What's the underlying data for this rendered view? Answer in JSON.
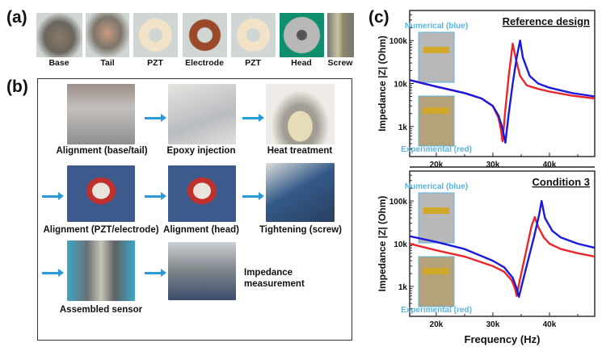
{
  "panel_a": {
    "label": "(a)",
    "parts": [
      "Base",
      "Tail",
      "PZT",
      "Electrode",
      "PZT",
      "Head",
      "Screw"
    ]
  },
  "panel_b": {
    "label": "(b)",
    "steps": [
      "Alignment (base/tail)",
      "Epoxy injection",
      "Heat treatment",
      "Alignment (PZT/electrode)",
      "Alignment (head)",
      "Tightening (screw)",
      "Assembled sensor",
      "Impedance measurement"
    ]
  },
  "panel_c": {
    "label": "(c)"
  },
  "colors": {
    "numerical": "#1a1adc",
    "experimental": "#e8262b",
    "inset_label": "#5ab4e0",
    "arrow": "#2b9ad8"
  },
  "chart_data": [
    {
      "type": "line",
      "title": "Reference design",
      "xlabel": "",
      "ylabel": "Impedance |Z| (Ohm)",
      "xlim": [
        15300,
        48000
      ],
      "ylim": [
        200,
        500000
      ],
      "yscale": "log",
      "xticks": [
        "20k",
        "30k",
        "40k"
      ],
      "yticks": [
        "1k",
        "10k",
        "100k"
      ],
      "inset_labels": [
        "Numerical (blue)",
        "Experimental (red)"
      ],
      "series": [
        {
          "name": "Numerical (blue)",
          "color": "#1a1adc",
          "x": [
            15300,
            20000,
            25000,
            28000,
            30000,
            31000,
            31700,
            32200,
            32800,
            33500,
            34200,
            34800,
            35300,
            36500,
            38000,
            40000,
            44000,
            48000
          ],
          "y": [
            12000,
            8500,
            6000,
            4500,
            3000,
            1800,
            900,
            420,
            2000,
            10000,
            40000,
            100000,
            40000,
            15000,
            10000,
            8000,
            6000,
            5000
          ]
        },
        {
          "name": "Experimental (red)",
          "color": "#e8262b",
          "x": [
            15300,
            20000,
            25000,
            28000,
            30000,
            31000,
            31400,
            31700,
            32200,
            32800,
            33500,
            34000,
            34800,
            36000,
            38000,
            40000,
            44000,
            48000
          ],
          "y": [
            12000,
            8500,
            6000,
            4500,
            3000,
            1600,
            900,
            450,
            2500,
            15000,
            85000,
            40000,
            15000,
            9000,
            7500,
            6500,
            5200,
            4500
          ]
        }
      ]
    },
    {
      "type": "line",
      "title": "Condition 3",
      "xlabel": "Frequency (Hz)",
      "ylabel": "Impedance |Z| (Ohm)",
      "xlim": [
        15300,
        48000
      ],
      "ylim": [
        200,
        500000
      ],
      "yscale": "log",
      "xticks": [
        "20k",
        "30k",
        "40k"
      ],
      "yticks": [
        "1k",
        "10k",
        "100k"
      ],
      "inset_labels": [
        "Numerical (blue)",
        "Experimental (red)"
      ],
      "series": [
        {
          "name": "Numerical (blue)",
          "color": "#1a1adc",
          "x": [
            15300,
            20000,
            25000,
            30000,
            32000,
            33500,
            34200,
            34600,
            35200,
            36200,
            37300,
            38200,
            38600,
            39200,
            40500,
            42000,
            45000,
            48000
          ],
          "y": [
            15000,
            11000,
            7500,
            4000,
            2800,
            1600,
            900,
            570,
            1200,
            4000,
            15000,
            50000,
            100000,
            40000,
            20000,
            14000,
            10000,
            8000
          ]
        },
        {
          "name": "Experimental (red)",
          "color": "#e8262b",
          "x": [
            15300,
            20000,
            25000,
            30000,
            32000,
            33300,
            33900,
            34200,
            34800,
            35800,
            36800,
            37400,
            38000,
            39000,
            40000,
            42000,
            45000,
            48000
          ],
          "y": [
            10000,
            7000,
            5000,
            3000,
            2200,
            1400,
            900,
            600,
            1500,
            6000,
            25000,
            42000,
            25000,
            14000,
            10000,
            7500,
            6000,
            5000
          ]
        }
      ]
    }
  ]
}
